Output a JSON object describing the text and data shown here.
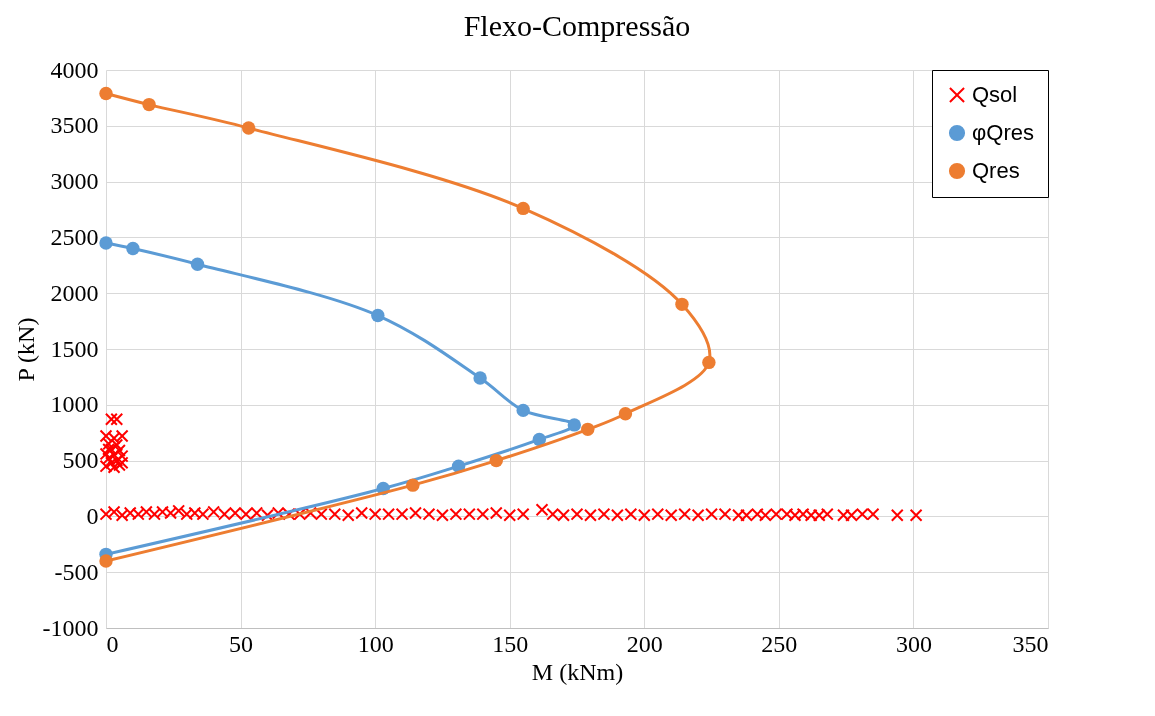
{
  "chart_data": {
    "type": "line",
    "title": "Flexo-Compressão",
    "xlabel": "M (kNm)",
    "ylabel": "P (kN)",
    "xlim": [
      0,
      350
    ],
    "xticks": [
      0,
      50,
      100,
      150,
      200,
      250,
      300,
      350
    ],
    "ylim": [
      -1000,
      4000
    ],
    "yticks": [
      {
        "value": -1000,
        "label": "-1000"
      },
      {
        "value": -500,
        "label": "-500"
      },
      0,
      500,
      1000,
      1500,
      2000,
      2500,
      3000,
      3500,
      4000
    ],
    "grid": true,
    "legend": "top right",
    "series": [
      {
        "name": "Qsol",
        "type": "scatter",
        "marker": "cross",
        "color": "#ff0000",
        "x": [
          2,
          4,
          0,
          3,
          6,
          1,
          4,
          2,
          5,
          0,
          3,
          6,
          1,
          4,
          2,
          5,
          0,
          3,
          6,
          1,
          0,
          3,
          6,
          9,
          12,
          15,
          18,
          21,
          24,
          27,
          30,
          33,
          36,
          40,
          44,
          48,
          52,
          56,
          60,
          64,
          68,
          72,
          76,
          80,
          85,
          90,
          95,
          100,
          105,
          110,
          115,
          120,
          125,
          130,
          135,
          140,
          145,
          150,
          155,
          162,
          166,
          170,
          175,
          180,
          185,
          190,
          195,
          200,
          205,
          210,
          215,
          220,
          225,
          230,
          235,
          238,
          242,
          245,
          249,
          253,
          256,
          259,
          262,
          265,
          268,
          274,
          277,
          281,
          285,
          294,
          301
        ],
        "values": [
          870,
          870,
          720,
          700,
          720,
          650,
          640,
          600,
          590,
          560,
          550,
          540,
          520,
          500,
          480,
          460,
          450,
          440,
          480,
          600,
          20,
          40,
          10,
          30,
          20,
          40,
          20,
          40,
          30,
          50,
          20,
          30,
          20,
          40,
          20,
          30,
          20,
          30,
          10,
          30,
          20,
          20,
          30,
          20,
          20,
          10,
          30,
          20,
          20,
          20,
          30,
          20,
          10,
          20,
          20,
          20,
          30,
          10,
          20,
          60,
          20,
          10,
          20,
          10,
          20,
          10,
          20,
          10,
          20,
          10,
          20,
          10,
          20,
          20,
          10,
          10,
          20,
          10,
          20,
          20,
          10,
          20,
          10,
          10,
          20,
          10,
          10,
          20,
          20,
          10,
          10
        ]
      },
      {
        "name": "φQres",
        "marker": "circle",
        "color": "#5b9bd5",
        "x": [
          0,
          10,
          34,
          101,
          139,
          155,
          174,
          161,
          131,
          103,
          0
        ],
        "values": [
          2450,
          2400,
          2260,
          1800,
          1240,
          950,
          820,
          690,
          450,
          250,
          -340
        ]
      },
      {
        "name": "Qres",
        "marker": "circle",
        "color": "#ed7d31",
        "x": [
          0,
          16,
          53,
          155,
          214,
          224,
          193,
          179,
          145,
          114,
          0
        ],
        "values": [
          3790,
          3690,
          3480,
          2760,
          1900,
          1380,
          920,
          780,
          500,
          280,
          -400
        ]
      }
    ]
  }
}
